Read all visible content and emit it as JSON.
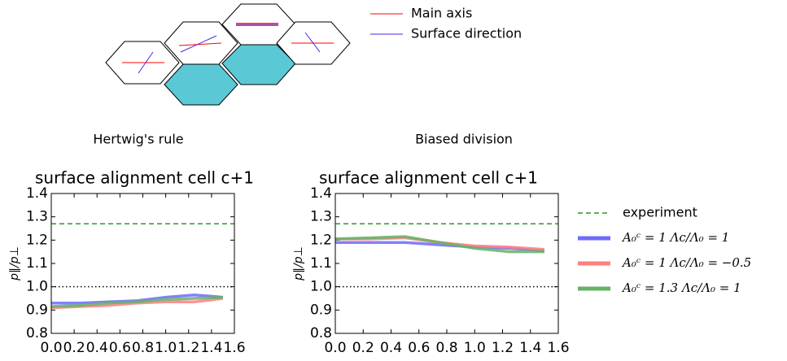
{
  "diagram": {
    "legend": [
      {
        "name": "Main axis",
        "color": "#ff0000"
      },
      {
        "name": "Surface direction",
        "color": "#5522dd"
      }
    ]
  },
  "panel_labels": [
    "Hertwig's rule",
    "Biased division"
  ],
  "chart_data": [
    {
      "type": "line",
      "title": "surface alignment cell c+1",
      "ylabel": "p∥/p⊥",
      "x": [
        0,
        0.25,
        0.5,
        0.75,
        1.0,
        1.25,
        1.5
      ],
      "series": [
        {
          "color": "#6b6bff",
          "values": [
            0.93,
            0.93,
            0.935,
            0.94,
            0.955,
            0.965,
            0.955
          ]
        },
        {
          "color": "#ff7f7f",
          "values": [
            0.91,
            0.915,
            0.92,
            0.93,
            0.935,
            0.935,
            0.95
          ]
        },
        {
          "color": "#66b266",
          "values": [
            0.915,
            0.92,
            0.93,
            0.935,
            0.945,
            0.95,
            0.955
          ]
        }
      ],
      "hlines": [
        {
          "value": 1.27,
          "color": "#2a9a2a",
          "style": "dashed"
        },
        {
          "value": 1,
          "color": "#000000",
          "style": "dotted"
        }
      ],
      "xlim": [
        0,
        1.6
      ],
      "xticks": [
        {
          "value": 0,
          "label": "0.0"
        },
        0.2,
        0.4,
        0.6,
        0.8,
        {
          "value": 1,
          "label": "1.0"
        },
        1.2,
        1.4,
        1.6
      ],
      "ylim": [
        0.8,
        1.4
      ],
      "yticks": [
        0.8,
        0.9,
        {
          "value": 1,
          "label": "1.0"
        },
        1.1,
        1.2,
        1.3,
        1.4
      ],
      "legend": false
    },
    {
      "type": "line",
      "title": "surface alignment cell c+1",
      "ylabel": "p∥/p⊥",
      "x": [
        0,
        0.25,
        0.5,
        0.75,
        1.0,
        1.25,
        1.5
      ],
      "series": [
        {
          "name": "A₀ᶜ = 1    Λc/Λ₀ = 1",
          "color": "#6b6bff",
          "values": [
            1.19,
            1.19,
            1.19,
            1.18,
            1.17,
            1.165,
            1.155
          ]
        },
        {
          "name": "A₀ᶜ = 1    Λc/Λ₀ = −0.5",
          "color": "#ff7f7f",
          "values": [
            1.205,
            1.205,
            1.21,
            1.19,
            1.175,
            1.17,
            1.16
          ]
        },
        {
          "name": "A₀ᶜ = 1.3    Λc/Λ₀ = 1",
          "color": "#66b266",
          "values": [
            1.205,
            1.21,
            1.215,
            1.19,
            1.165,
            1.15,
            1.15
          ]
        }
      ],
      "hlines": [
        {
          "name": "experiment",
          "value": 1.27,
          "color": "#2a9a2a",
          "style": "dashed"
        },
        {
          "value": 1,
          "color": "#000000",
          "style": "dotted"
        }
      ],
      "xlim": [
        0,
        1.6
      ],
      "xticks": [
        {
          "value": 0,
          "label": "0.0"
        },
        0.2,
        0.4,
        0.6,
        0.8,
        {
          "value": 1,
          "label": "1.0"
        },
        1.2,
        1.4,
        1.6
      ],
      "ylim": [
        0.8,
        1.4
      ],
      "yticks": [
        0.8,
        0.9,
        {
          "value": 1,
          "label": "1.0"
        },
        1.1,
        1.2,
        1.3,
        1.4
      ],
      "legend": true
    }
  ]
}
